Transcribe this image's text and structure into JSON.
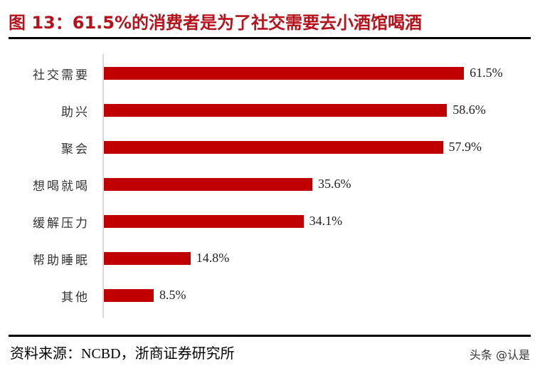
{
  "figure": {
    "title": "图 13：61.5%的消费者是为了社交需要去小酒馆喝酒",
    "source": "资料来源：NCBD，浙商证券研究所",
    "watermark": "头条 @认是",
    "colors": {
      "title": "#b5121b",
      "bar": "#c00000",
      "axis": "#d9d9d9",
      "rule": "#000000"
    }
  },
  "bars": [
    {
      "label": "社交需要",
      "value": 61.5,
      "display": "61.5%"
    },
    {
      "label": "助兴",
      "value": 58.6,
      "display": "58.6%"
    },
    {
      "label": "聚会",
      "value": 57.9,
      "display": "57.9%"
    },
    {
      "label": "想喝就喝",
      "value": 35.6,
      "display": "35.6%"
    },
    {
      "label": "缓解压力",
      "value": 34.1,
      "display": "34.1%"
    },
    {
      "label": "帮助睡眠",
      "value": 14.8,
      "display": "14.8%"
    },
    {
      "label": "其他",
      "value": 8.5,
      "display": "8.5%"
    }
  ],
  "chart_data": {
    "type": "bar",
    "orientation": "horizontal",
    "title": "图 13：61.5%的消费者是为了社交需要去小酒馆喝酒",
    "categories": [
      "社交需要",
      "助兴",
      "聚会",
      "想喝就喝",
      "缓解压力",
      "帮助睡眠",
      "其他"
    ],
    "values": [
      61.5,
      58.6,
      57.9,
      35.6,
      34.1,
      14.8,
      8.5
    ],
    "unit": "%",
    "data_labels": [
      "61.5%",
      "58.6%",
      "57.9%",
      "35.6%",
      "34.1%",
      "14.8%",
      "8.5%"
    ],
    "xlabel": "",
    "ylabel": "",
    "xlim": [
      0,
      70
    ],
    "grid": false,
    "legend": null,
    "source": "资料来源：NCBD，浙商证券研究所"
  }
}
